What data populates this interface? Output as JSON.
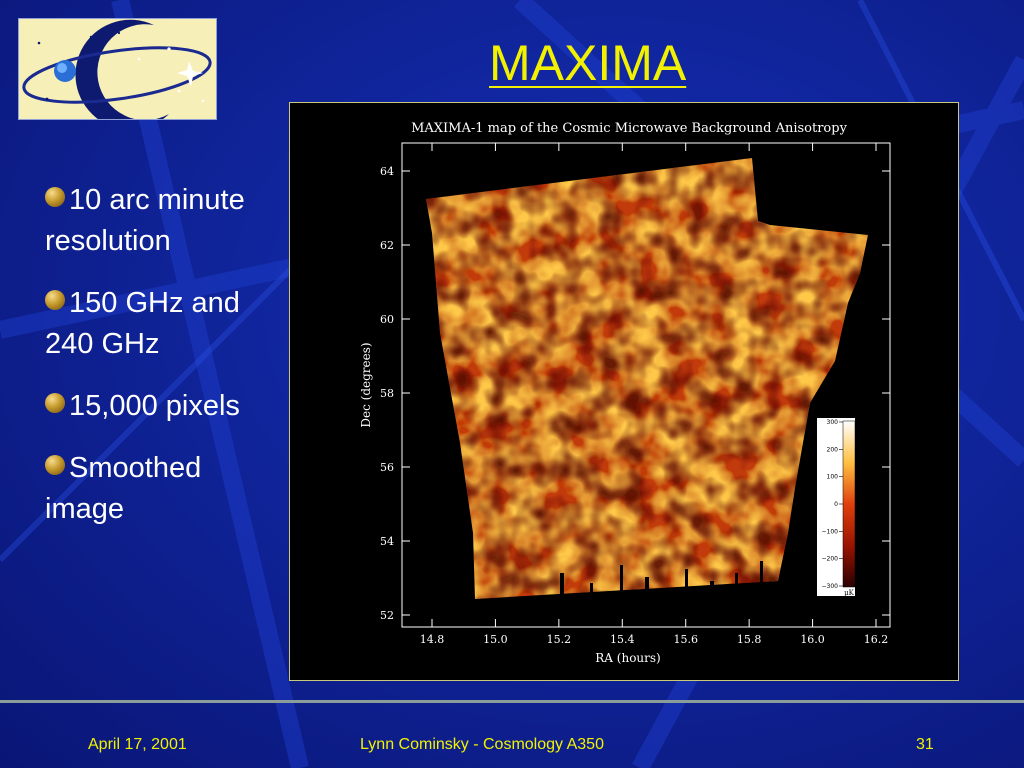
{
  "slide": {
    "title": "MAXIMA",
    "bullets": [
      {
        "text": "10 arc minute resolution"
      },
      {
        "text": "150 GHz and 240 GHz"
      },
      {
        "text": "15,000 pixels"
      },
      {
        "text": "Smoothed image"
      }
    ],
    "footer": {
      "date": "April 17, 2001",
      "author": "Lynn Cominsky - Cosmology A350",
      "page": "31"
    }
  },
  "map": {
    "title": "MAXIMA-1 map of the Cosmic Microwave Background Anisotropy",
    "xlabel": "RA (hours)",
    "ylabel": "Dec (degrees)",
    "xticks": [
      "14.8",
      "15.0",
      "15.2",
      "15.4",
      "15.6",
      "15.8",
      "16.0",
      "16.2"
    ],
    "yticks": [
      "64",
      "62",
      "60",
      "58",
      "56",
      "54",
      "52"
    ],
    "colorbar": {
      "ticks": [
        "300",
        "200",
        "100",
        "0",
        "−100",
        "−200",
        "−300"
      ],
      "unit": "μK"
    }
  },
  "colors": {
    "background": "#0c1a8c",
    "title": "#f2f200",
    "text": "#ffffff",
    "footer": "#f2f200"
  }
}
